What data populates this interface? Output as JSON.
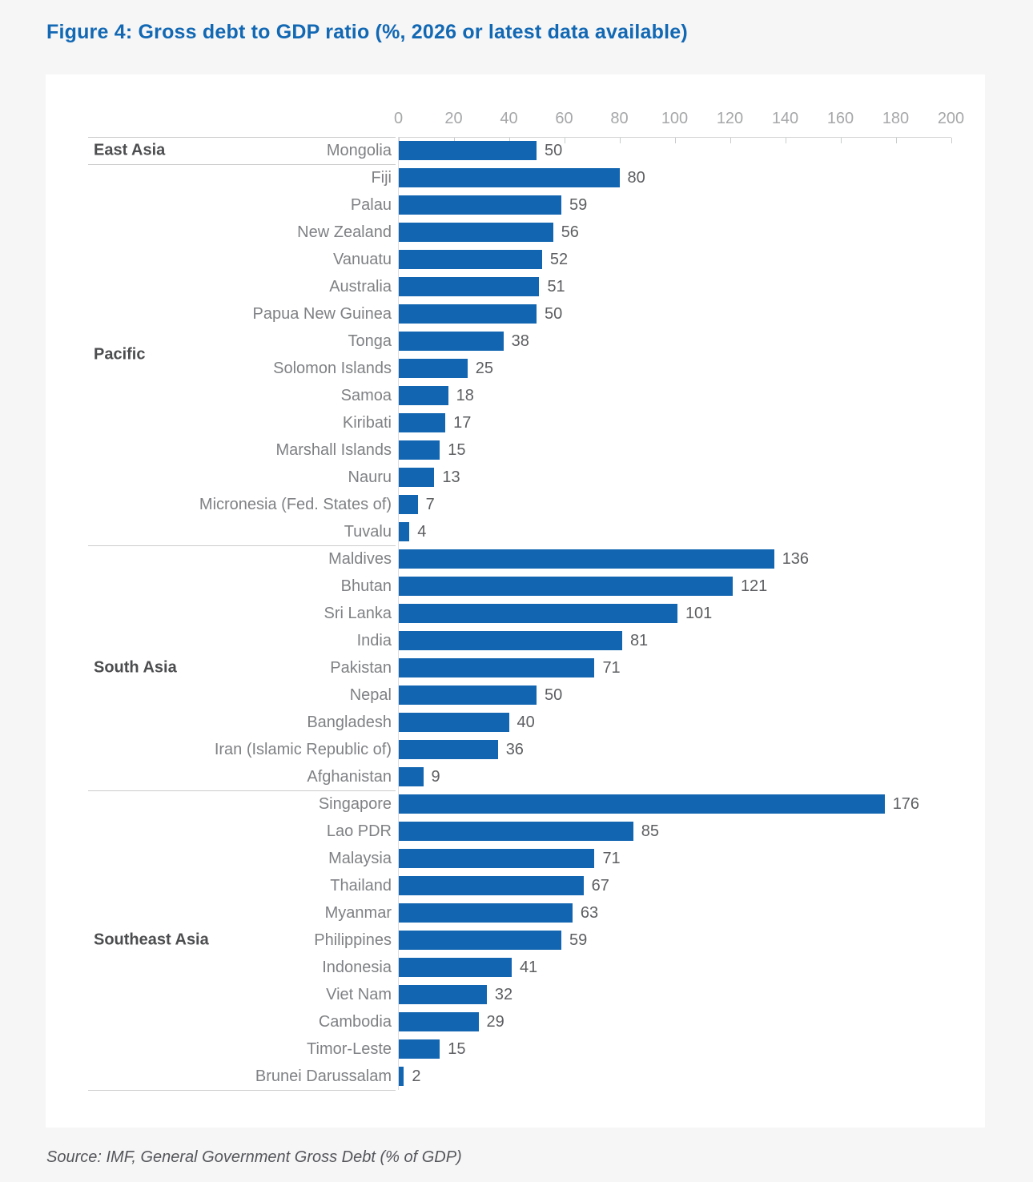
{
  "title": "Figure 4: Gross debt to GDP ratio (%, 2026 or latest data available)",
  "source": "Source: IMF, General Government Gross Debt (% of GDP)",
  "colors": {
    "title_blue": "#1268b3",
    "bar_blue": "#1165b1",
    "page_background": "#f6f6f7",
    "card_background": "#ffffff"
  },
  "chart_data": {
    "type": "bar",
    "orientation": "horizontal",
    "title": "Figure 4: Gross debt to GDP ratio (%, 2026 or latest data available)",
    "xlabel": "",
    "ylabel": "",
    "xlim": [
      0,
      200
    ],
    "x_ticks": [
      0,
      20,
      40,
      60,
      80,
      100,
      120,
      140,
      160,
      180,
      200
    ],
    "grid": false,
    "legend": "none",
    "groups": [
      {
        "name": "East Asia",
        "items": [
          {
            "label": "Mongolia",
            "value": 50
          }
        ]
      },
      {
        "name": "Pacific",
        "items": [
          {
            "label": "Fiji",
            "value": 80
          },
          {
            "label": "Palau",
            "value": 59
          },
          {
            "label": "New Zealand",
            "value": 56
          },
          {
            "label": "Vanuatu",
            "value": 52
          },
          {
            "label": "Australia",
            "value": 51
          },
          {
            "label": "Papua New Guinea",
            "value": 50
          },
          {
            "label": "Tonga",
            "value": 38
          },
          {
            "label": "Solomon Islands",
            "value": 25
          },
          {
            "label": "Samoa",
            "value": 18
          },
          {
            "label": "Kiribati",
            "value": 17
          },
          {
            "label": "Marshall Islands",
            "value": 15
          },
          {
            "label": "Nauru",
            "value": 13
          },
          {
            "label": "Micronesia (Fed. States of)",
            "value": 7
          },
          {
            "label": "Tuvalu",
            "value": 4
          }
        ]
      },
      {
        "name": "South Asia",
        "items": [
          {
            "label": "Maldives",
            "value": 136
          },
          {
            "label": "Bhutan",
            "value": 121
          },
          {
            "label": "Sri Lanka",
            "value": 101
          },
          {
            "label": "India",
            "value": 81
          },
          {
            "label": "Pakistan",
            "value": 71
          },
          {
            "label": "Nepal",
            "value": 50
          },
          {
            "label": "Bangladesh",
            "value": 40
          },
          {
            "label": "Iran (Islamic Republic of)",
            "value": 36
          },
          {
            "label": "Afghanistan",
            "value": 9
          }
        ]
      },
      {
        "name": "Southeast Asia",
        "items": [
          {
            "label": "Singapore",
            "value": 176
          },
          {
            "label": "Lao PDR",
            "value": 85
          },
          {
            "label": "Malaysia",
            "value": 71
          },
          {
            "label": "Thailand",
            "value": 67
          },
          {
            "label": "Myanmar",
            "value": 63
          },
          {
            "label": "Philippines",
            "value": 59
          },
          {
            "label": "Indonesia",
            "value": 41
          },
          {
            "label": "Viet Nam",
            "value": 32
          },
          {
            "label": "Cambodia",
            "value": 29
          },
          {
            "label": "Timor-Leste",
            "value": 15
          },
          {
            "label": "Brunei Darussalam",
            "value": 2
          }
        ]
      }
    ]
  }
}
